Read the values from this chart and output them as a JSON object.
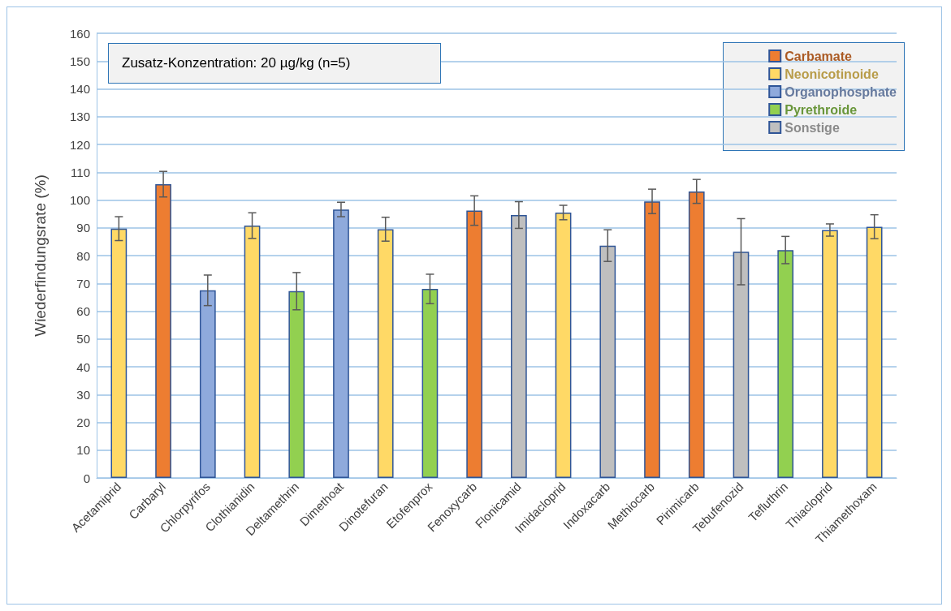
{
  "chart_data": {
    "type": "bar",
    "ylabel": "Wiederfindungsrate (%)",
    "annotations": [
      "Zusatz-Konzentration: 20 µg/kg (n=5)"
    ],
    "categories": [
      "Acetamiprid",
      "Carbaryl",
      "Chlorpyrifos",
      "Clothianidin",
      "Deltamethrin",
      "Dimethoat",
      "Dinotefuran",
      "Etofenprox",
      "Fenoxycarb",
      "Flonicamid",
      "Imidacloprid",
      "Indoxacarb",
      "Methiocarb",
      "Pirimicarb",
      "Tebufenozid",
      "Tefluthrin",
      "Thiacloprid",
      "Thiamethoxam"
    ],
    "series": [
      {
        "name": "Carbamate",
        "color": "#ed7d31",
        "values": [
          null,
          105.7,
          null,
          null,
          null,
          null,
          null,
          null,
          96.2,
          null,
          null,
          null,
          99.5,
          103.1,
          null,
          null,
          null,
          null
        ],
        "errors": [
          null,
          4.6,
          null,
          null,
          null,
          null,
          null,
          null,
          5.3,
          null,
          null,
          null,
          4.4,
          4.3,
          null,
          null,
          null,
          null
        ]
      },
      {
        "name": "Neonicotinoide",
        "color": "#ffd966",
        "values": [
          89.7,
          null,
          null,
          90.8,
          null,
          null,
          89.5,
          null,
          null,
          null,
          95.5,
          null,
          null,
          null,
          null,
          null,
          89.2,
          90.4
        ],
        "errors": [
          4.3,
          null,
          null,
          4.6,
          null,
          null,
          4.3,
          null,
          null,
          null,
          2.6,
          null,
          null,
          null,
          null,
          null,
          2.2,
          4.3
        ]
      },
      {
        "name": "Organophosphate",
        "color": "#8faadc",
        "values": [
          null,
          null,
          67.5,
          null,
          null,
          96.6,
          null,
          null,
          null,
          null,
          null,
          null,
          null,
          null,
          null,
          null,
          null,
          null
        ],
        "errors": [
          null,
          null,
          5.5,
          null,
          null,
          2.6,
          null,
          null,
          null,
          null,
          null,
          null,
          null,
          null,
          null,
          null,
          null,
          null
        ]
      },
      {
        "name": "Pyrethroide",
        "color": "#92d050",
        "values": [
          null,
          null,
          null,
          null,
          67.2,
          null,
          null,
          68,
          null,
          null,
          null,
          null,
          null,
          null,
          null,
          82,
          null,
          null
        ],
        "errors": [
          null,
          null,
          null,
          null,
          6.7,
          null,
          null,
          5.3,
          null,
          null,
          null,
          null,
          null,
          null,
          null,
          4.9,
          null,
          null
        ]
      },
      {
        "name": "Sonstige",
        "color": "#bfbfbf",
        "values": [
          null,
          null,
          null,
          null,
          null,
          null,
          null,
          null,
          null,
          94.6,
          null,
          83.6,
          null,
          null,
          81.4,
          null,
          null,
          null
        ],
        "errors": [
          null,
          null,
          null,
          null,
          null,
          null,
          null,
          null,
          null,
          4.8,
          null,
          5.7,
          null,
          null,
          11.9,
          null,
          null,
          null
        ]
      }
    ],
    "ylim": [
      0,
      160
    ],
    "yticks": [
      0,
      10,
      20,
      30,
      40,
      50,
      60,
      70,
      80,
      90,
      100,
      110,
      120,
      130,
      140,
      150,
      160
    ],
    "grid": "y",
    "legend": "top right"
  }
}
